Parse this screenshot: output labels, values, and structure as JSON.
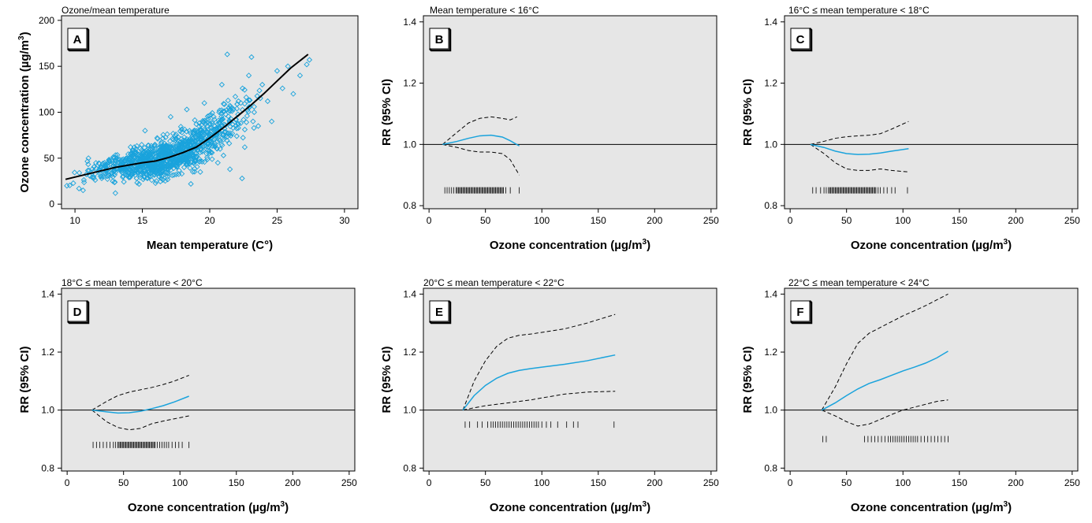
{
  "chart_data": [
    {
      "panel": "A",
      "type": "scatter",
      "title": "Ozone/mean temperature",
      "xlabel": "Mean temperature (C°)",
      "ylabel": "Ozone concentration (µg/m³)",
      "xlim": [
        9,
        31
      ],
      "ylim": [
        -5,
        205
      ],
      "xticks": [
        10,
        15,
        20,
        25,
        30
      ],
      "yticks": [
        0,
        50,
        100,
        150,
        200
      ],
      "grid": false,
      "scatter_color": "#1aa3dc",
      "scatter_marker": "open-diamond",
      "point_count_estimate": 1100,
      "smooth_fit": {
        "color": "#000000",
        "x": [
          9.3,
          11,
          13,
          15,
          16,
          17,
          18,
          19,
          20,
          21,
          22,
          23,
          24,
          25,
          26,
          27.3
        ],
        "y": [
          27,
          33,
          40,
          45,
          47,
          51,
          56,
          62,
          72,
          83,
          95,
          107,
          120,
          134,
          148,
          163
        ]
      },
      "sample_points": [
        [
          9.4,
          20
        ],
        [
          10.3,
          17
        ],
        [
          10.6,
          15
        ],
        [
          11.0,
          50
        ],
        [
          11.5,
          33
        ],
        [
          12.2,
          45
        ],
        [
          12.8,
          25
        ],
        [
          13.0,
          12
        ],
        [
          13.5,
          37
        ],
        [
          14.0,
          50
        ],
        [
          14.4,
          62
        ],
        [
          14.9,
          33
        ],
        [
          15.2,
          80
        ],
        [
          15.8,
          48
        ],
        [
          16.1,
          72
        ],
        [
          16.4,
          28
        ],
        [
          16.8,
          52
        ],
        [
          17.1,
          95
        ],
        [
          17.5,
          43
        ],
        [
          17.9,
          60
        ],
        [
          18.3,
          103
        ],
        [
          18.6,
          22
        ],
        [
          18.9,
          80
        ],
        [
          19.3,
          35
        ],
        [
          19.6,
          110
        ],
        [
          20.0,
          58
        ],
        [
          20.3,
          95
        ],
        [
          20.6,
          45
        ],
        [
          20.9,
          130
        ],
        [
          21.2,
          75
        ],
        [
          21.5,
          38
        ],
        [
          21.9,
          117
        ],
        [
          22.3,
          88
        ],
        [
          22.6,
          62
        ],
        [
          22.9,
          140
        ],
        [
          23.3,
          100
        ],
        [
          23.6,
          85
        ],
        [
          23.9,
          130
        ],
        [
          24.3,
          112
        ],
        [
          24.6,
          90
        ],
        [
          25.0,
          145
        ],
        [
          25.4,
          126
        ],
        [
          25.8,
          150
        ],
        [
          26.2,
          120
        ],
        [
          26.7,
          140
        ],
        [
          27.2,
          152
        ],
        [
          27.4,
          157
        ],
        [
          21.3,
          163
        ],
        [
          22.4,
          28
        ],
        [
          23.1,
          160
        ],
        [
          12.0,
          30
        ],
        [
          14.7,
          40
        ],
        [
          16.6,
          62
        ],
        [
          18.1,
          40
        ],
        [
          19.8,
          85
        ],
        [
          20.7,
          100
        ],
        [
          17.3,
          70
        ],
        [
          15.5,
          55
        ],
        [
          13.8,
          43
        ],
        [
          11.8,
          38
        ]
      ]
    },
    {
      "panel": "B",
      "type": "line",
      "title": "Mean temperature < 16°C",
      "xlabel": "Ozone concentration (µg/m³)",
      "ylabel": "RR (95% CI)",
      "xlim": [
        -5,
        255
      ],
      "ylim": [
        0.79,
        1.42
      ],
      "xticks": [
        0,
        50,
        100,
        150,
        200,
        250
      ],
      "yticks": [
        0.8,
        1.0,
        1.2,
        1.4
      ],
      "reference_line": 1.0,
      "estimate": {
        "color": "#1aa3dc",
        "x": [
          12,
          25,
          35,
          45,
          55,
          65,
          72,
          80
        ],
        "y": [
          1.0,
          1.01,
          1.02,
          1.028,
          1.03,
          1.024,
          1.012,
          0.995
        ]
      },
      "ci_upper": {
        "x": [
          12,
          25,
          35,
          45,
          55,
          65,
          72,
          78
        ],
        "y": [
          1.0,
          1.04,
          1.07,
          1.085,
          1.09,
          1.085,
          1.08,
          1.09
        ]
      },
      "ci_lower": {
        "x": [
          12,
          25,
          35,
          45,
          55,
          65,
          72,
          80
        ],
        "y": [
          1.0,
          0.99,
          0.98,
          0.975,
          0.975,
          0.97,
          0.95,
          0.9
        ]
      },
      "rug": {
        "y": 0.85,
        "x": [
          14,
          16,
          18,
          20,
          22,
          24,
          25,
          26,
          27,
          28,
          29,
          30,
          31,
          32,
          33,
          34,
          35,
          36,
          37,
          38,
          39,
          40,
          41,
          42,
          43,
          44,
          45,
          46,
          47,
          48,
          49,
          50,
          51,
          52,
          53,
          54,
          55,
          56,
          57,
          58,
          59,
          60,
          61,
          62,
          63,
          64,
          65,
          66,
          68,
          72,
          80
        ]
      }
    },
    {
      "panel": "C",
      "type": "line",
      "title": "16°C ≤ mean temperature < 18°C",
      "xlabel": "Ozone concentration (µg/m³)",
      "ylabel": "RR (95% CI)",
      "xlim": [
        -5,
        255
      ],
      "ylim": [
        0.79,
        1.42
      ],
      "xticks": [
        0,
        50,
        100,
        150,
        200,
        250
      ],
      "yticks": [
        0.8,
        1.0,
        1.2,
        1.4
      ],
      "reference_line": 1.0,
      "estimate": {
        "color": "#1aa3dc",
        "x": [
          18,
          30,
          40,
          50,
          60,
          70,
          80,
          90,
          105
        ],
        "y": [
          1.0,
          0.99,
          0.978,
          0.97,
          0.967,
          0.968,
          0.972,
          0.978,
          0.986
        ]
      },
      "ci_upper": {
        "x": [
          18,
          30,
          40,
          50,
          60,
          70,
          80,
          90,
          105
        ],
        "y": [
          1.0,
          1.01,
          1.02,
          1.025,
          1.028,
          1.03,
          1.035,
          1.05,
          1.075
        ]
      },
      "ci_lower": {
        "x": [
          18,
          30,
          40,
          50,
          60,
          70,
          80,
          90,
          105
        ],
        "y": [
          1.0,
          0.97,
          0.94,
          0.92,
          0.915,
          0.915,
          0.92,
          0.915,
          0.91
        ]
      },
      "rug": {
        "y": 0.85,
        "x": [
          20,
          23,
          27,
          30,
          32,
          34,
          35,
          36,
          37,
          38,
          39,
          40,
          41,
          42,
          43,
          44,
          45,
          46,
          47,
          48,
          49,
          50,
          51,
          52,
          53,
          54,
          55,
          56,
          57,
          58,
          59,
          60,
          61,
          62,
          63,
          64,
          65,
          66,
          67,
          68,
          69,
          70,
          71,
          72,
          73,
          74,
          75,
          76,
          78,
          80,
          83,
          86,
          90,
          93,
          104
        ]
      }
    },
    {
      "panel": "D",
      "type": "line",
      "title": "18°C ≤ mean temperature < 20°C",
      "xlabel": "Ozone concentration (µg/m³)",
      "ylabel": "RR (95% CI)",
      "xlim": [
        -5,
        255
      ],
      "ylim": [
        0.79,
        1.42
      ],
      "xticks": [
        0,
        50,
        100,
        150,
        200,
        250
      ],
      "yticks": [
        0.8,
        1.0,
        1.2,
        1.4
      ],
      "reference_line": 1.0,
      "estimate": {
        "color": "#1aa3dc",
        "x": [
          22,
          35,
          45,
          55,
          65,
          75,
          85,
          95,
          108
        ],
        "y": [
          1.0,
          0.994,
          0.99,
          0.991,
          0.996,
          1.005,
          1.015,
          1.028,
          1.048
        ]
      },
      "ci_upper": {
        "x": [
          22,
          35,
          45,
          55,
          65,
          75,
          85,
          95,
          108
        ],
        "y": [
          1.0,
          1.03,
          1.05,
          1.062,
          1.07,
          1.078,
          1.088,
          1.1,
          1.12
        ]
      },
      "ci_lower": {
        "x": [
          22,
          35,
          45,
          55,
          65,
          75,
          85,
          95,
          108
        ],
        "y": [
          1.0,
          0.96,
          0.94,
          0.932,
          0.937,
          0.953,
          0.962,
          0.97,
          0.98
        ]
      },
      "rug": {
        "y": 0.88,
        "x": [
          23,
          26,
          29,
          32,
          35,
          38,
          41,
          43,
          45,
          46,
          47,
          48,
          49,
          50,
          51,
          52,
          53,
          54,
          55,
          56,
          57,
          58,
          59,
          60,
          61,
          62,
          63,
          64,
          65,
          66,
          67,
          68,
          69,
          70,
          71,
          72,
          73,
          74,
          75,
          76,
          77,
          78,
          80,
          82,
          84,
          86,
          88,
          90,
          93,
          96,
          99,
          102,
          108
        ]
      }
    },
    {
      "panel": "E",
      "type": "line",
      "title": "20°C ≤ mean temperature < 22°C",
      "xlabel": "Ozone concentration (µg/m³)",
      "ylabel": "RR (95% CI)",
      "xlim": [
        -5,
        255
      ],
      "ylim": [
        0.79,
        1.42
      ],
      "xticks": [
        0,
        50,
        100,
        150,
        200,
        250
      ],
      "yticks": [
        0.8,
        1.0,
        1.2,
        1.4
      ],
      "reference_line": 1.0,
      "estimate": {
        "color": "#1aa3dc",
        "x": [
          30,
          40,
          50,
          60,
          70,
          80,
          90,
          100,
          120,
          140,
          165
        ],
        "y": [
          1.0,
          1.05,
          1.085,
          1.11,
          1.127,
          1.137,
          1.143,
          1.148,
          1.158,
          1.17,
          1.19
        ]
      },
      "ci_upper": {
        "x": [
          30,
          40,
          50,
          60,
          70,
          80,
          90,
          100,
          120,
          140,
          165
        ],
        "y": [
          1.0,
          1.1,
          1.17,
          1.22,
          1.248,
          1.258,
          1.262,
          1.268,
          1.28,
          1.3,
          1.33
        ]
      },
      "ci_lower": {
        "x": [
          30,
          40,
          50,
          60,
          70,
          80,
          90,
          100,
          120,
          140,
          165
        ],
        "y": [
          1.0,
          1.008,
          1.015,
          1.02,
          1.025,
          1.03,
          1.035,
          1.042,
          1.055,
          1.062,
          1.065
        ]
      },
      "rug": {
        "y": 0.95,
        "x": [
          32,
          36,
          43,
          47,
          52,
          55,
          57,
          59,
          61,
          63,
          65,
          67,
          69,
          71,
          73,
          75,
          77,
          79,
          81,
          83,
          85,
          87,
          89,
          91,
          93,
          95,
          97,
          100,
          104,
          108,
          114,
          122,
          128,
          132,
          164
        ]
      }
    },
    {
      "panel": "F",
      "type": "line",
      "title": "22°C ≤ mean temperature < 24°C",
      "xlabel": "Ozone concentration (µg/m³)",
      "ylabel": "RR (95% CI)",
      "xlim": [
        -5,
        255
      ],
      "ylim": [
        0.79,
        1.42
      ],
      "xticks": [
        0,
        50,
        100,
        150,
        200,
        250
      ],
      "yticks": [
        0.8,
        1.0,
        1.2,
        1.4
      ],
      "reference_line": 1.0,
      "estimate": {
        "color": "#1aa3dc",
        "x": [
          28,
          40,
          50,
          60,
          70,
          80,
          90,
          100,
          110,
          120,
          130,
          140
        ],
        "y": [
          1.0,
          1.025,
          1.05,
          1.073,
          1.092,
          1.105,
          1.12,
          1.135,
          1.148,
          1.162,
          1.18,
          1.203
        ]
      },
      "ci_upper": {
        "x": [
          28,
          40,
          50,
          60,
          70,
          80,
          90,
          100,
          110,
          120,
          130,
          140
        ],
        "y": [
          1.0,
          1.08,
          1.16,
          1.23,
          1.265,
          1.285,
          1.305,
          1.325,
          1.342,
          1.36,
          1.38,
          1.4
        ]
      },
      "ci_lower": {
        "x": [
          28,
          40,
          50,
          60,
          70,
          80,
          90,
          100,
          110,
          120,
          130,
          140
        ],
        "y": [
          1.0,
          0.98,
          0.96,
          0.945,
          0.952,
          0.968,
          0.985,
          1.0,
          1.01,
          1.02,
          1.03,
          1.035
        ]
      },
      "rug": {
        "y": 0.9,
        "x": [
          29,
          32,
          66,
          69,
          72,
          75,
          78,
          81,
          84,
          87,
          89,
          91,
          93,
          95,
          97,
          99,
          101,
          103,
          105,
          107,
          109,
          111,
          113,
          116,
          119,
          122,
          125,
          128,
          131,
          134,
          137,
          140
        ]
      }
    }
  ]
}
